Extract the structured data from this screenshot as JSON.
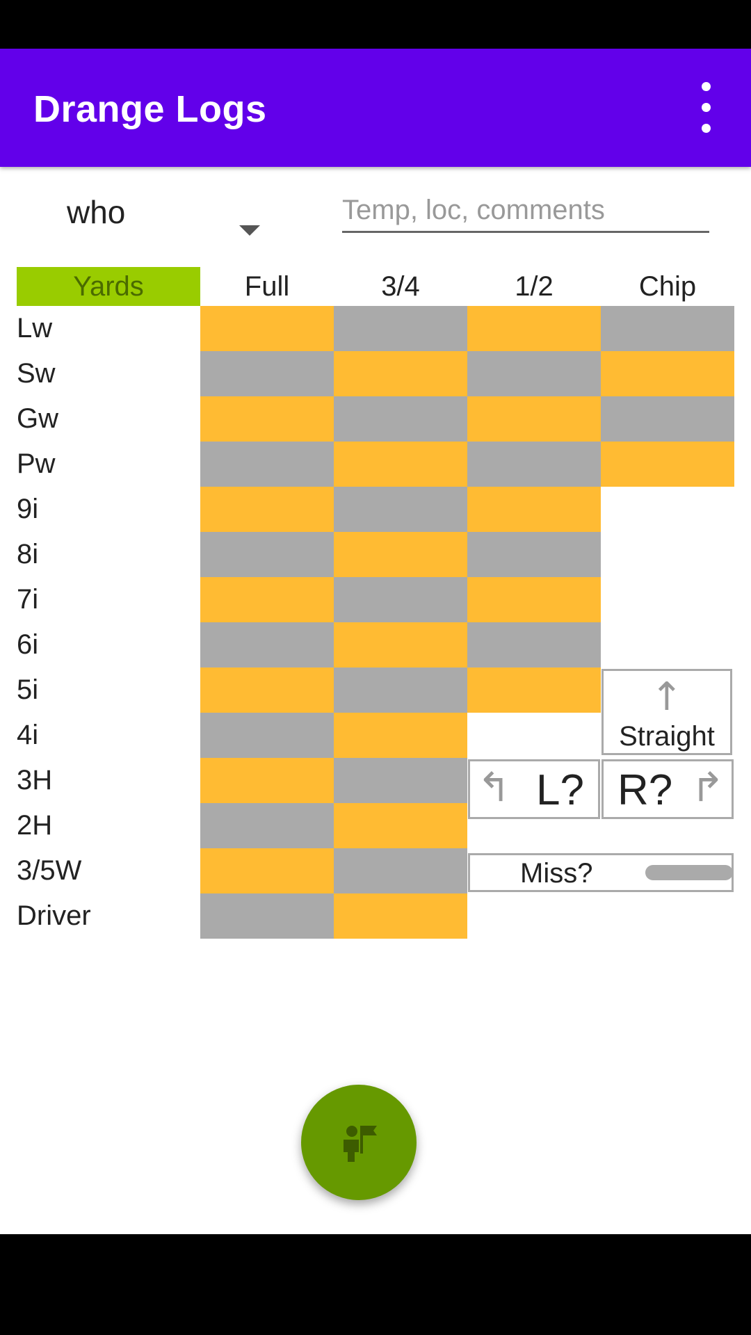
{
  "app": {
    "title": "Drange Logs"
  },
  "player_selector": {
    "value": "who"
  },
  "comments": {
    "placeholder": "Temp, loc, comments",
    "value": ""
  },
  "grid": {
    "yards_label": "Yards",
    "columns": [
      "Full",
      "3/4",
      "1/2",
      "Chip"
    ],
    "clubs": [
      "Lw",
      "Sw",
      "Gw",
      "Pw",
      "9i",
      "8i",
      "7i",
      "6i",
      "5i",
      "4i",
      "3H",
      "2H",
      "3/5W",
      "Driver"
    ],
    "cell_counts": [
      4,
      4,
      4,
      4,
      3,
      3,
      3,
      3,
      3,
      2,
      2,
      2,
      2,
      2
    ],
    "colors": {
      "a": "#ffbb33",
      "b": "#aaaaaa"
    }
  },
  "direction": {
    "straight_label": "Straight",
    "straight_icon": "arrow-up-icon",
    "left_label": "L?",
    "left_icon": "turn-left-icon",
    "right_label": "R?",
    "right_icon": "turn-right-icon"
  },
  "miss": {
    "label": "Miss?",
    "checked": false
  },
  "fab": {
    "icon": "golfer-flag-icon",
    "color": "#669900"
  },
  "colors": {
    "app_bar": "#6200ea",
    "yards_header": "#99cc00"
  }
}
